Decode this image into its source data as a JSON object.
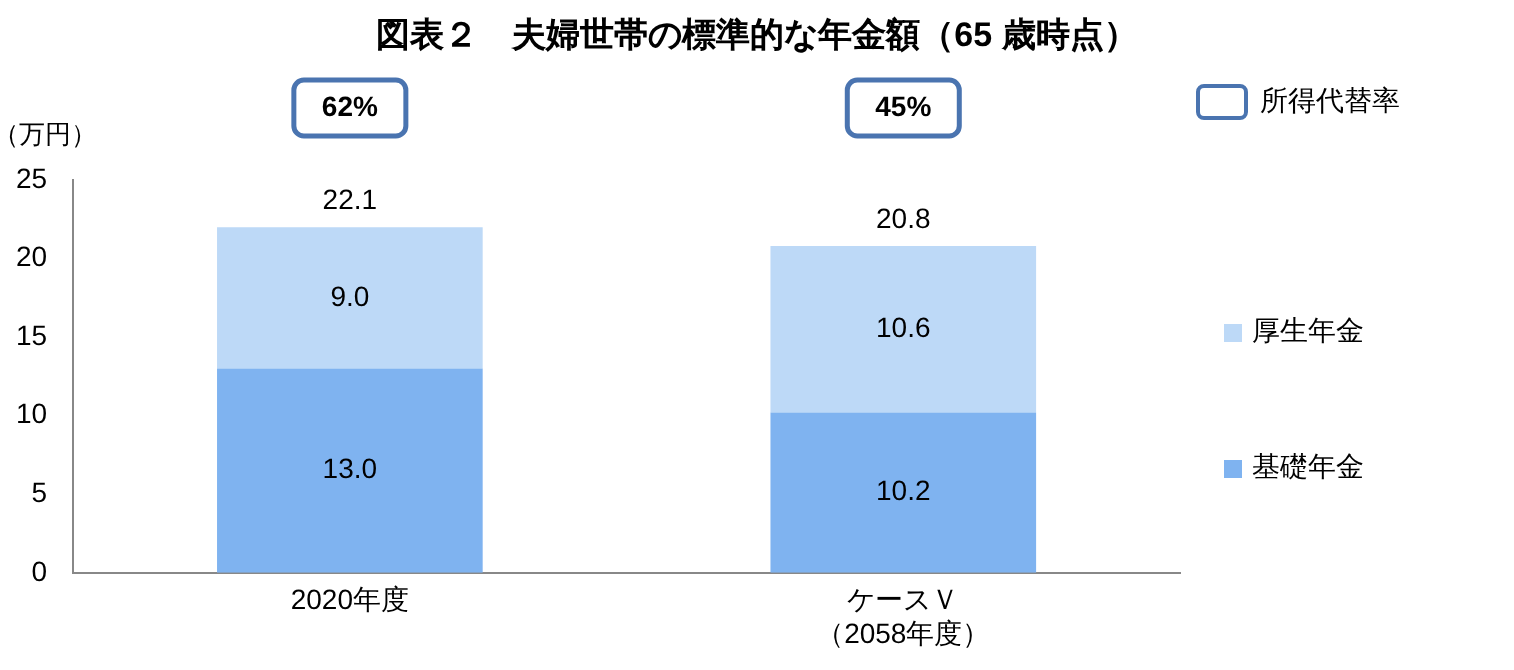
{
  "chart_data": {
    "type": "bar",
    "title": "図表２　夫婦世帯の標準的な年金額（65 歳時点）",
    "ylabel": "（万円）",
    "categories": [
      "2020年度",
      "ケースＶ（2058年度）"
    ],
    "series": [
      {
        "name": "基礎年金",
        "color": "#7fb3f0",
        "values": [
          13.0,
          10.2
        ],
        "value_labels": [
          "13.0",
          "10.2"
        ]
      },
      {
        "name": "厚生年金",
        "color": "#bdd9f7",
        "values": [
          9.0,
          10.6
        ],
        "value_labels": [
          "9.0",
          "10.6"
        ]
      }
    ],
    "stacked": true,
    "totals": [
      "22.1",
      "20.8"
    ],
    "ylim": [
      0,
      25
    ],
    "yticks": [
      0,
      5,
      10,
      15,
      20,
      25
    ],
    "grid": false,
    "legend": "right",
    "annotations": [
      "62%",
      "45%",
      "所得代替率"
    ]
  }
}
